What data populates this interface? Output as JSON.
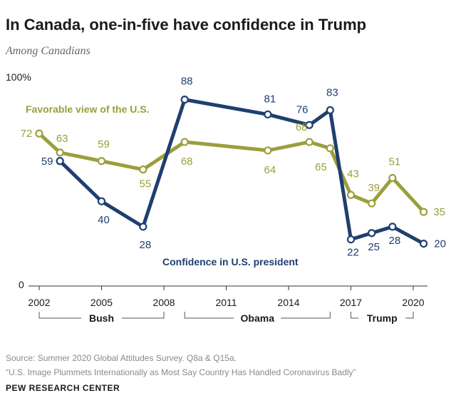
{
  "header": {
    "title": "In Canada, one-in-five have confidence in Trump",
    "subtitle": "Among Canadians"
  },
  "chart_data": {
    "type": "line",
    "y_axis_top_label": "100%",
    "y_axis_bottom_label": "0",
    "ylim": [
      0,
      100
    ],
    "xlim": [
      2002,
      2020.5
    ],
    "x_ticks": [
      {
        "value": 2002,
        "label": "2002"
      },
      {
        "value": 2005,
        "label": "2005"
      },
      {
        "value": 2008,
        "label": "2008"
      },
      {
        "value": 2011,
        "label": "2011"
      },
      {
        "value": 2014,
        "label": "2014"
      },
      {
        "value": 2017,
        "label": "2017"
      },
      {
        "value": 2020,
        "label": "2020"
      }
    ],
    "grid": false,
    "legend": "inline labels",
    "series": [
      {
        "name": "Favorable view of the U.S.",
        "color": "#9a9f3b",
        "x": [
          2002,
          2003,
          2005,
          2007,
          2009,
          2013,
          2015,
          2016,
          2017,
          2018,
          2019,
          2020.5
        ],
        "values": [
          72,
          63,
          59,
          55,
          68,
          64,
          68,
          65,
          43,
          39,
          51,
          35
        ]
      },
      {
        "name": "Confidence in U.S. president",
        "color": "#1f3f6e",
        "x": [
          2003,
          2005,
          2007,
          2009,
          2013,
          2015,
          2016,
          2017,
          2018,
          2019,
          2020.5
        ],
        "values": [
          59,
          40,
          28,
          88,
          81,
          76,
          83,
          22,
          25,
          28,
          20
        ]
      }
    ],
    "periods": [
      {
        "label": "Bush",
        "from": 2002,
        "to": 2008
      },
      {
        "label": "Obama",
        "from": 2009,
        "to": 2016
      },
      {
        "label": "Trump",
        "from": 2017,
        "to": 2020
      }
    ]
  },
  "footer": {
    "source_line1": "Source: Summer 2020 Global Attitudes Survey. Q8a & Q15a.",
    "source_line2": "“U.S. Image Plummets Internationally as Most Say Country Has Handled Coronavirus Badly”",
    "organization": "PEW RESEARCH CENTER"
  }
}
